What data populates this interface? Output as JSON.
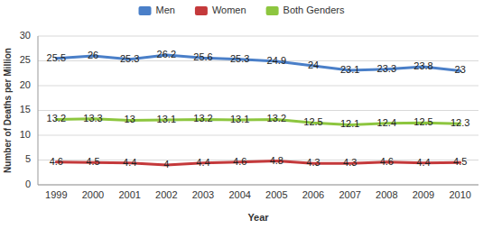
{
  "chart_data": {
    "type": "line",
    "x_label": "Year",
    "y_label": "Number of Deaths per Million",
    "categories": [
      "1999",
      "2000",
      "2001",
      "2002",
      "2003",
      "2004",
      "2005",
      "2006",
      "2007",
      "2008",
      "2009",
      "2010"
    ],
    "series": [
      {
        "name": "Men",
        "color": "#4a7fc8",
        "values": [
          25.5,
          26,
          25.3,
          26.2,
          25.6,
          25.3,
          24.9,
          24,
          23.1,
          23.3,
          23.8,
          23
        ]
      },
      {
        "name": "Women",
        "color": "#c4393b",
        "values": [
          4.6,
          4.5,
          4.4,
          4,
          4.4,
          4.6,
          4.8,
          4.3,
          4.3,
          4.6,
          4.4,
          4.5
        ]
      },
      {
        "name": "Both Genders",
        "color": "#8dc63f",
        "values": [
          13.2,
          13.3,
          13,
          13.1,
          13.2,
          13.1,
          13.2,
          12.5,
          12.1,
          12.4,
          12.5,
          12.3
        ]
      }
    ],
    "ylim": [
      0,
      30
    ],
    "yticks": [
      0,
      5,
      10,
      15,
      20,
      25,
      30
    ],
    "grid": true,
    "legend": "top",
    "data_labels": true
  }
}
